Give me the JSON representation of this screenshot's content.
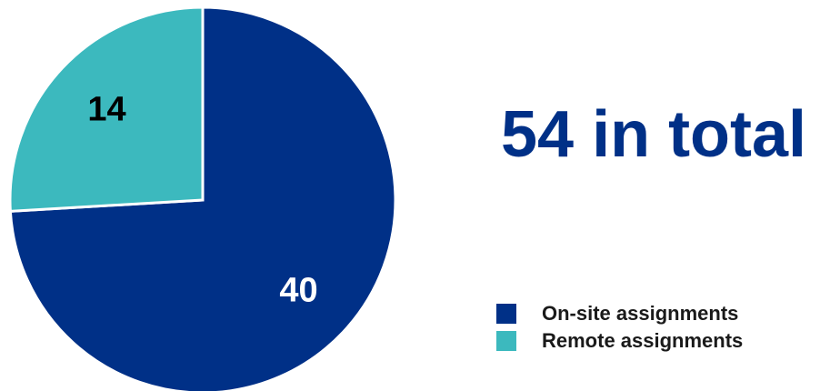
{
  "chart_data": {
    "type": "pie",
    "categories": [
      "On-site assignments",
      "Remote assignments"
    ],
    "values": [
      40,
      14
    ],
    "colors": [
      "#003087",
      "#3CB9BE"
    ],
    "label_colors": [
      "#ffffff",
      "#000000"
    ],
    "total_label": "54 in total",
    "legend_position": "bottom-right"
  }
}
